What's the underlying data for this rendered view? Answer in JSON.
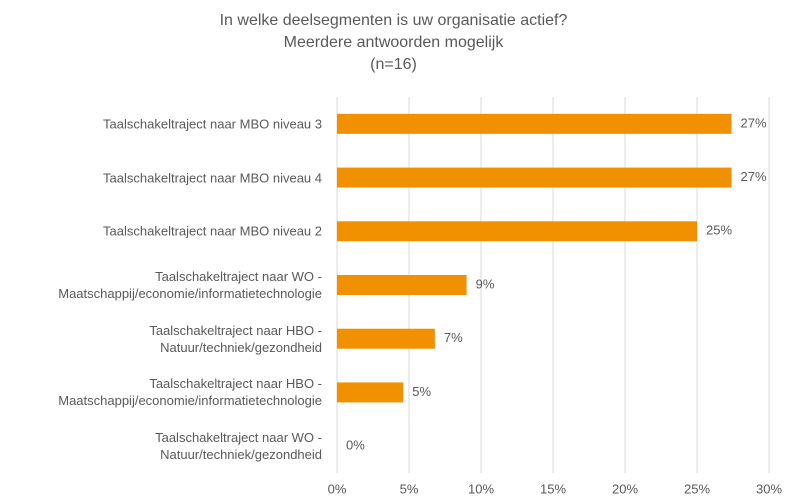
{
  "chart_data": {
    "type": "barh",
    "title": "In welke deelsegmenten is uw organisatie actief?\nMeerdere antwoorden mogelijk\n(n=16)",
    "categories": [
      "Taalschakeltraject naar MBO niveau 3",
      "Taalschakeltraject naar MBO niveau 4",
      "Taalschakeltraject naar MBO niveau 2",
      "Taalschakeltraject naar WO -\nMaatschappij/economie/informatietechnologie",
      "Taalschakeltraject naar HBO -\nNatuur/techniek/gezondheid",
      "Taalschakeltraject naar HBO -\nMaatschappij/economie/informatietechnologie",
      "Taalschakeltraject naar WO -\nNatuur/techniek/gezondheid"
    ],
    "values": [
      27.4,
      27.4,
      25,
      9,
      6.8,
      4.6,
      0
    ],
    "value_labels": [
      "27%",
      "27%",
      "25%",
      "9%",
      "7%",
      "5%",
      "0%"
    ],
    "color": "#f29100",
    "xlim": [
      0,
      30
    ],
    "xticks": [
      {
        "value": 0,
        "label": "0%"
      },
      {
        "value": 5,
        "label": "5%"
      },
      {
        "value": 10,
        "label": "10%"
      },
      {
        "value": 15,
        "label": "15%"
      },
      {
        "value": 20,
        "label": "20%"
      },
      {
        "value": 25,
        "label": "25%"
      },
      {
        "value": 30,
        "label": "30%"
      }
    ],
    "grid": true
  }
}
